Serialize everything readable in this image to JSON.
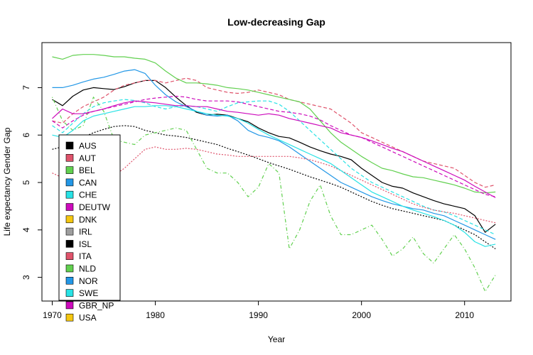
{
  "chart_data": {
    "type": "line",
    "title": "Low-decreasing Gap",
    "xlabel": "Year",
    "ylabel": "Life expectancy Gender Gap",
    "xlim": [
      1969,
      2014.5
    ],
    "ylim": [
      2.5,
      7.95
    ],
    "xticks": [
      "1970",
      "1980",
      "1990",
      "2000",
      "2010"
    ],
    "yticks": [
      "3",
      "4",
      "5",
      "6",
      "7"
    ],
    "xtick_values": [
      1970,
      1980,
      1990,
      2000,
      2010
    ],
    "ytick_values": [
      3,
      4,
      5,
      6,
      7
    ],
    "grid": false,
    "legend_position": "bottom-left",
    "series": [
      {
        "name": "AUS",
        "color": "#000000",
        "dash": "solid",
        "x": [
          1970,
          1971,
          1972,
          1973,
          1974,
          1975,
          1976,
          1977,
          1978,
          1979,
          1980,
          1981,
          1982,
          1983,
          1984,
          1985,
          1986,
          1987,
          1988,
          1989,
          1990,
          1991,
          1992,
          1993,
          1994,
          1995,
          1996,
          1997,
          1998,
          1999,
          2000,
          2001,
          2002,
          2003,
          2004,
          2005,
          2006,
          2007,
          2008,
          2009,
          2010,
          2011,
          2012,
          2013
        ],
        "y": [
          6.75,
          6.62,
          6.82,
          6.95,
          7.0,
          6.98,
          6.96,
          7.02,
          7.1,
          7.15,
          7.15,
          7.0,
          6.8,
          6.62,
          6.48,
          6.42,
          6.44,
          6.42,
          6.35,
          6.28,
          6.15,
          6.05,
          5.97,
          5.94,
          5.85,
          5.75,
          5.67,
          5.6,
          5.55,
          5.48,
          5.3,
          5.15,
          5.0,
          4.92,
          4.88,
          4.78,
          4.7,
          4.62,
          4.55,
          4.5,
          4.45,
          4.3,
          3.95,
          4.12
        ]
      },
      {
        "name": "AUT",
        "color": "#DF536B",
        "dash": "dashed",
        "x": [
          1970,
          1971,
          1972,
          1973,
          1974,
          1975,
          1976,
          1977,
          1978,
          1979,
          1980,
          1981,
          1982,
          1983,
          1984,
          1985,
          1986,
          1987,
          1988,
          1989,
          1990,
          1991,
          1992,
          1993,
          1994,
          1995,
          1996,
          1997,
          1998,
          1999,
          2000,
          2001,
          2002,
          2003,
          2004,
          2005,
          2006,
          2007,
          2008,
          2009,
          2010,
          2011,
          2012,
          2013
        ],
        "y": [
          6.3,
          6.25,
          6.45,
          6.6,
          6.7,
          6.8,
          6.95,
          7.05,
          7.1,
          7.15,
          7.15,
          7.1,
          7.15,
          7.2,
          7.15,
          7.0,
          6.95,
          6.9,
          6.88,
          6.9,
          6.95,
          6.9,
          6.85,
          6.75,
          6.7,
          6.65,
          6.6,
          6.55,
          6.4,
          6.25,
          6.05,
          5.95,
          5.85,
          5.75,
          5.65,
          5.55,
          5.45,
          5.4,
          5.35,
          5.3,
          5.15,
          5.0,
          4.9,
          4.95
        ]
      },
      {
        "name": "BEL",
        "color": "#61D04F",
        "dash": "solid",
        "x": [
          1970,
          1971,
          1972,
          1973,
          1974,
          1975,
          1976,
          1977,
          1978,
          1979,
          1980,
          1981,
          1982,
          1983,
          1984,
          1985,
          1986,
          1987,
          1988,
          1989,
          1990,
          1991,
          1992,
          1993,
          1994,
          1995,
          1996,
          1997,
          1998,
          1999,
          2000,
          2001,
          2002,
          2003,
          2004,
          2005,
          2006,
          2007,
          2008,
          2009,
          2010,
          2011,
          2012,
          2013
        ],
        "y": [
          7.65,
          7.6,
          7.68,
          7.7,
          7.7,
          7.68,
          7.65,
          7.65,
          7.62,
          7.6,
          7.52,
          7.35,
          7.2,
          7.1,
          7.1,
          7.08,
          7.05,
          7.0,
          6.98,
          6.95,
          6.9,
          6.85,
          6.8,
          6.75,
          6.7,
          6.55,
          6.3,
          6.05,
          5.85,
          5.7,
          5.55,
          5.42,
          5.3,
          5.25,
          5.18,
          5.12,
          5.1,
          5.05,
          5.0,
          4.95,
          4.88,
          4.8,
          4.78,
          4.8
        ]
      },
      {
        "name": "CAN",
        "color": "#2297E6",
        "dash": "solid",
        "x": [
          1970,
          1971,
          1972,
          1973,
          1974,
          1975,
          1976,
          1977,
          1978,
          1979,
          1980,
          1981,
          1982,
          1983,
          1984,
          1985,
          1986,
          1987,
          1988,
          1989,
          1990,
          1991,
          1992,
          1993,
          1994,
          1995,
          1996,
          1997,
          1998,
          1999,
          2000,
          2001,
          2002,
          2003,
          2004,
          2005,
          2006,
          2007,
          2008,
          2009,
          2010,
          2011,
          2012,
          2013
        ],
        "y": [
          7.0,
          7.0,
          7.05,
          7.12,
          7.18,
          7.22,
          7.28,
          7.35,
          7.38,
          7.3,
          7.05,
          6.85,
          6.7,
          6.6,
          6.5,
          6.42,
          6.4,
          6.42,
          6.3,
          6.1,
          6.0,
          5.95,
          5.88,
          5.75,
          5.6,
          5.45,
          5.3,
          5.15,
          5.0,
          4.9,
          4.8,
          4.7,
          4.62,
          4.55,
          4.5,
          4.45,
          4.42,
          4.35,
          4.3,
          4.2,
          4.1,
          4.0,
          3.9,
          3.8
        ]
      },
      {
        "name": "CHE",
        "color": "#28E2E5",
        "dash": "dashed",
        "x": [
          1970,
          1971,
          1972,
          1973,
          1974,
          1975,
          1976,
          1977,
          1978,
          1979,
          1980,
          1981,
          1982,
          1983,
          1984,
          1985,
          1986,
          1987,
          1988,
          1989,
          1990,
          1991,
          1992,
          1993,
          1994,
          1995,
          1996,
          1997,
          1998,
          1999,
          2000,
          2001,
          2002,
          2003,
          2004,
          2005,
          2006,
          2007,
          2008,
          2009,
          2010,
          2011,
          2012,
          2013
        ],
        "y": [
          6.2,
          6.05,
          6.25,
          6.45,
          6.6,
          6.68,
          6.72,
          6.75,
          6.73,
          6.68,
          6.6,
          6.55,
          6.6,
          6.62,
          6.6,
          6.55,
          6.5,
          6.6,
          6.68,
          6.7,
          6.72,
          6.72,
          6.65,
          6.5,
          6.3,
          6.1,
          5.9,
          5.7,
          5.5,
          5.3,
          5.15,
          5.0,
          4.9,
          4.8,
          4.7,
          4.6,
          4.5,
          4.42,
          4.38,
          4.3,
          4.2,
          4.1,
          4.0,
          3.9
        ]
      },
      {
        "name": "DEUTW",
        "color": "#CD0BBC",
        "dash": "dashed",
        "x": [
          1970,
          1971,
          1972,
          1973,
          1974,
          1975,
          1976,
          1977,
          1978,
          1979,
          1980,
          1981,
          1982,
          1983,
          1984,
          1985,
          1986,
          1987,
          1988,
          1989,
          1990,
          1991,
          1992,
          1993,
          1994,
          1995,
          1996,
          1997,
          1998,
          1999,
          2000,
          2001,
          2002,
          2003,
          2004,
          2005,
          2006,
          2007,
          2008,
          2009,
          2010,
          2011,
          2012,
          2013
        ],
        "y": [
          6.3,
          6.15,
          6.3,
          6.42,
          6.5,
          6.55,
          6.6,
          6.65,
          6.7,
          6.75,
          6.78,
          6.8,
          6.82,
          6.8,
          6.75,
          6.72,
          6.72,
          6.72,
          6.7,
          6.65,
          6.6,
          6.55,
          6.5,
          6.48,
          6.45,
          6.4,
          6.32,
          6.2,
          6.1,
          6.0,
          5.95,
          5.85,
          5.75,
          5.65,
          5.55,
          5.45,
          5.35,
          5.25,
          5.15,
          5.05,
          4.95,
          4.85,
          4.75,
          4.7
        ]
      },
      {
        "name": "DNK",
        "color": "#F5C710",
        "dash": "dashed",
        "x": [],
        "y": []
      },
      {
        "name": "IRL",
        "color": "#9E9E9E",
        "dash": "dashed",
        "x": [],
        "y": []
      },
      {
        "name": "ISL",
        "color": "#000000",
        "dash": "dotted",
        "x": [
          1970,
          1971,
          1972,
          1973,
          1974,
          1975,
          1976,
          1977,
          1978,
          1979,
          1980,
          1981,
          1982,
          1983,
          1984,
          1985,
          1986,
          1987,
          1988,
          1989,
          1990,
          1991,
          1992,
          1993,
          1994,
          1995,
          1996,
          1997,
          1998,
          1999,
          2000,
          2001,
          2002,
          2003,
          2004,
          2005,
          2006,
          2007,
          2008,
          2009,
          2010,
          2011,
          2012,
          2013
        ],
        "y": [
          5.7,
          5.75,
          5.85,
          5.95,
          6.05,
          6.12,
          6.18,
          6.2,
          6.18,
          6.1,
          6.05,
          6.0,
          5.98,
          5.95,
          5.9,
          5.85,
          5.8,
          5.72,
          5.65,
          5.58,
          5.5,
          5.42,
          5.35,
          5.28,
          5.2,
          5.12,
          5.05,
          4.98,
          4.9,
          4.8,
          4.7,
          4.6,
          4.52,
          4.45,
          4.4,
          4.35,
          4.3,
          4.25,
          4.2,
          4.1,
          4.0,
          3.9,
          3.75,
          3.6
        ]
      },
      {
        "name": "ITA",
        "color": "#DF536B",
        "dash": "dotted",
        "x": [
          1970,
          1971,
          1972,
          1973,
          1974,
          1975,
          1976,
          1977,
          1978,
          1979,
          1980,
          1981,
          1982,
          1983,
          1984,
          1985,
          1986,
          1987,
          1988,
          1989,
          1990,
          1991,
          1992,
          1993,
          1994,
          1995,
          1996,
          1997,
          1998,
          1999,
          2000,
          2001,
          2002,
          2003,
          2004,
          2005,
          2006,
          2007,
          2008,
          2009,
          2010,
          2011,
          2012,
          2013
        ],
        "y": [
          5.2,
          5.1,
          5.05,
          5.05,
          5.08,
          5.1,
          5.15,
          5.3,
          5.5,
          5.7,
          5.75,
          5.7,
          5.7,
          5.72,
          5.7,
          5.65,
          5.6,
          5.58,
          5.55,
          5.55,
          5.55,
          5.55,
          5.55,
          5.55,
          5.52,
          5.48,
          5.42,
          5.35,
          5.25,
          5.15,
          5.05,
          4.95,
          4.85,
          4.75,
          4.65,
          4.55,
          4.48,
          4.42,
          4.38,
          4.35,
          4.3,
          4.25,
          4.2,
          4.15
        ]
      },
      {
        "name": "NLD",
        "color": "#61D04F",
        "dash": "dotdash",
        "x": [
          1970,
          1971,
          1972,
          1973,
          1974,
          1975,
          1976,
          1977,
          1978,
          1979,
          1980,
          1981,
          1982,
          1983,
          1984,
          1985,
          1986,
          1987,
          1988,
          1989,
          1990,
          1991,
          1992,
          1993,
          1994,
          1995,
          1996,
          1997,
          1998,
          1999,
          2000,
          2001,
          2002,
          2003,
          2004,
          2005,
          2006,
          2007,
          2008,
          2009,
          2010,
          2011,
          2012,
          2013
        ],
        "y": [
          6.8,
          6.3,
          6.1,
          6.2,
          6.8,
          6.5,
          5.9,
          5.85,
          5.8,
          6.0,
          6.05,
          6.1,
          6.15,
          6.1,
          5.7,
          5.3,
          5.2,
          5.2,
          5.0,
          4.7,
          4.9,
          5.4,
          5.2,
          3.6,
          4.0,
          4.6,
          4.95,
          4.3,
          3.9,
          3.9,
          4.0,
          4.1,
          3.8,
          3.45,
          3.6,
          3.85,
          3.5,
          3.3,
          3.6,
          3.9,
          3.6,
          3.2,
          2.7,
          3.05
        ]
      },
      {
        "name": "NOR",
        "color": "#2297E6",
        "dash": "dotted",
        "x": [],
        "y": []
      },
      {
        "name": "SWE",
        "color": "#28E2E5",
        "dash": "solid",
        "x": [
          1970,
          1971,
          1972,
          1973,
          1974,
          1975,
          1976,
          1977,
          1978,
          1979,
          1980,
          1981,
          1982,
          1983,
          1984,
          1985,
          1986,
          1987,
          1988,
          1989,
          1990,
          1991,
          1992,
          1993,
          1994,
          1995,
          1996,
          1997,
          1998,
          1999,
          2000,
          2001,
          2002,
          2003,
          2004,
          2005,
          2006,
          2007,
          2008,
          2009,
          2010,
          2011,
          2012,
          2013
        ],
        "y": [
          6.0,
          5.95,
          6.1,
          6.3,
          6.4,
          6.45,
          6.5,
          6.55,
          6.6,
          6.6,
          6.62,
          6.62,
          6.6,
          6.55,
          6.5,
          6.45,
          6.42,
          6.4,
          6.35,
          6.25,
          6.12,
          6.0,
          5.9,
          5.8,
          5.7,
          5.6,
          5.5,
          5.4,
          5.25,
          5.1,
          4.95,
          4.8,
          4.7,
          4.6,
          4.5,
          4.42,
          4.35,
          4.28,
          4.2,
          4.1,
          3.95,
          3.75,
          3.65,
          3.7
        ]
      },
      {
        "name": "GBR_NP",
        "color": "#CD0BBC",
        "dash": "solid",
        "x": [
          1970,
          1971,
          1972,
          1973,
          1974,
          1975,
          1976,
          1977,
          1978,
          1979,
          1980,
          1981,
          1982,
          1983,
          1984,
          1985,
          1986,
          1987,
          1988,
          1989,
          1990,
          1991,
          1992,
          1993,
          1994,
          1995,
          1996,
          1997,
          1998,
          1999,
          2000,
          2001,
          2002,
          2003,
          2004,
          2005,
          2006,
          2007,
          2008,
          2009,
          2010,
          2011,
          2012,
          2013
        ],
        "y": [
          6.35,
          6.55,
          6.45,
          6.45,
          6.5,
          6.55,
          6.62,
          6.68,
          6.72,
          6.7,
          6.68,
          6.65,
          6.62,
          6.62,
          6.6,
          6.6,
          6.55,
          6.5,
          6.48,
          6.45,
          6.42,
          6.45,
          6.42,
          6.35,
          6.3,
          6.25,
          6.2,
          6.15,
          6.05,
          6.0,
          5.95,
          5.88,
          5.8,
          5.72,
          5.65,
          5.55,
          5.45,
          5.35,
          5.25,
          5.15,
          5.05,
          4.92,
          4.8,
          4.68
        ]
      },
      {
        "name": "USA",
        "color": "#F5C710",
        "dash": "solid",
        "x": [],
        "y": []
      }
    ]
  }
}
